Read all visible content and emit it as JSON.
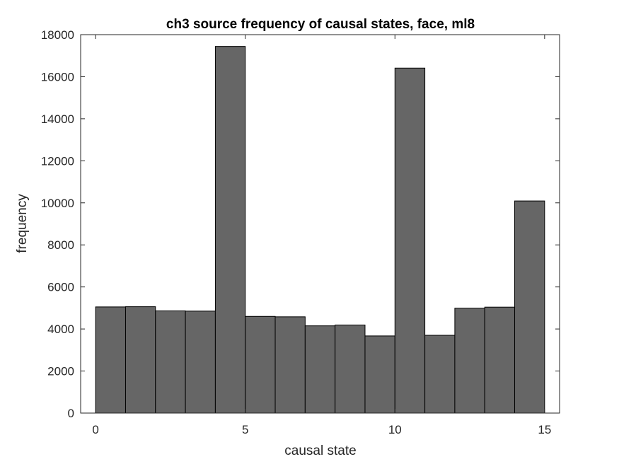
{
  "chart_data": {
    "type": "bar",
    "title": "ch3 source frequency of causal states, face, ml8",
    "xlabel": "causal state",
    "ylabel": "frequency",
    "xlim": [
      -0.5,
      15.5
    ],
    "ylim": [
      0,
      18000
    ],
    "xticks": [
      0,
      5,
      10,
      15
    ],
    "yticks": [
      0,
      2000,
      4000,
      6000,
      8000,
      10000,
      12000,
      14000,
      16000,
      18000
    ],
    "bin_edges": [
      0,
      1,
      2,
      3,
      4,
      5,
      6,
      7,
      8,
      9,
      10,
      11,
      12,
      13,
      14,
      15
    ],
    "values": [
      5050,
      5060,
      4860,
      4850,
      17440,
      4600,
      4580,
      4150,
      4190,
      3670,
      16410,
      3700,
      4990,
      5040,
      10090
    ],
    "bar_color": "#666666",
    "edge_color": "#000000",
    "grid": false,
    "legend": "none"
  }
}
